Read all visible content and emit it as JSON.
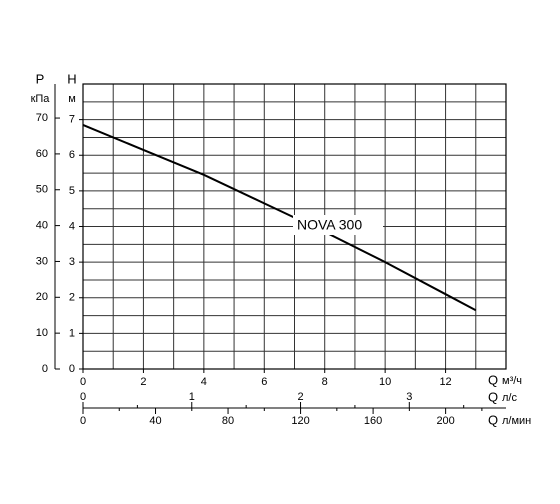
{
  "chart_data": {
    "type": "line",
    "p_label": "P",
    "p_unit": "кПа",
    "h_label": "H",
    "h_unit": "м",
    "x_symbol": "Q",
    "x_unit": "м³/ч",
    "x2_symbol": "Q",
    "x2_unit": "л/с",
    "x3_symbol": "Q",
    "x3_unit": "л/мин",
    "x": [
      0,
      2,
      4,
      6,
      8,
      10,
      12,
      13
    ],
    "series": [
      {
        "name": "NOVA 300",
        "color": "#000000",
        "values": [
          6.85,
          6.15,
          5.45,
          4.65,
          3.85,
          3.0,
          2.1,
          1.65
        ]
      }
    ],
    "xlim": [
      0,
      14
    ],
    "xticks": [
      0,
      2,
      4,
      6,
      8,
      10,
      12
    ],
    "xminor": [
      1,
      3,
      5,
      7,
      9,
      11,
      13
    ],
    "ylim": [
      0,
      8
    ],
    "yticks": [
      0,
      1,
      2,
      3,
      4,
      5,
      6,
      7
    ],
    "yminor": [
      0.5,
      1.5,
      2.5,
      3.5,
      4.5,
      5.5,
      6.5,
      7.5
    ],
    "y2lim": [
      0,
      79.5
    ],
    "y2ticks": [
      0,
      10,
      20,
      30,
      40,
      50,
      60,
      70
    ],
    "x2lim": [
      0,
      3.889
    ],
    "x2ticks": [
      0,
      1,
      2,
      3
    ],
    "x2minor": [
      0.5,
      1.5,
      2.5,
      3.5
    ],
    "x3lim": [
      0,
      233.3
    ],
    "x3ticks": [
      0,
      40,
      80,
      120,
      160,
      200
    ],
    "x3minor": [
      20,
      60,
      100,
      140,
      180,
      220
    ],
    "grid": true
  }
}
